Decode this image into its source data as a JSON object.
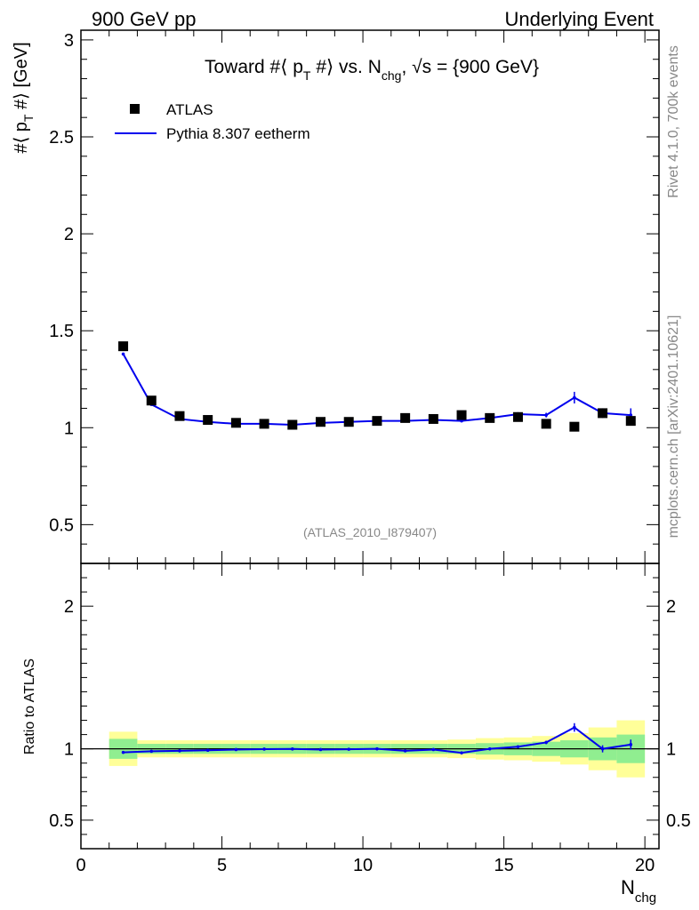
{
  "header": {
    "left": "900 GeV pp",
    "right": "Underlying Event"
  },
  "side_labels": {
    "rivet": "Rivet 4.1.0,  700k events",
    "mcplots": "mcplots.cern.ch [arXiv:2401.10621]"
  },
  "title": {
    "text1": "Toward #⟨ p",
    "sub1": "T",
    "text2": " #⟩ vs. N",
    "sub2": "chg",
    "text3": ", √s = {900 GeV}"
  },
  "analysis_id": "(ATLAS_2010_I879407)",
  "ylabel_main": {
    "text1": "#⟨ p",
    "sub1": "T",
    "text2": " #⟩ [GeV]"
  },
  "ylabel_ratio": "Ratio to ATLAS",
  "xlabel": {
    "text": "N",
    "sub": "chg"
  },
  "legend": {
    "data": "ATLAS",
    "mc": "Pythia 8.307 eetherm"
  },
  "colors": {
    "mc": "#0000ee",
    "data": "#000000",
    "band_inner": "#90ee90",
    "band_outer": "#ffff99"
  },
  "chart_data": {
    "type": "scatter",
    "title": "Toward <pT> vs. Nchg, sqrt(s) = 900 GeV",
    "xlabel": "Nchg",
    "ylabel": "<pT> [GeV]",
    "xlim": [
      0,
      20.5
    ],
    "ylim": [
      0.3,
      3.05
    ],
    "xticks": [
      0,
      5,
      10,
      15,
      20
    ],
    "yticks": [
      0.5,
      1,
      1.5,
      2,
      2.5,
      3
    ],
    "ratio_ylim": [
      0.3,
      2.3
    ],
    "ratio_yticks": [
      0.5,
      1,
      2
    ],
    "x": [
      1.5,
      2.5,
      3.5,
      4.5,
      5.5,
      6.5,
      7.5,
      8.5,
      9.5,
      10.5,
      11.5,
      12.5,
      13.5,
      14.5,
      15.5,
      16.5,
      17.5,
      18.5,
      19.5
    ],
    "bins": [
      [
        1,
        2
      ],
      [
        2,
        3
      ],
      [
        3,
        4
      ],
      [
        4,
        5
      ],
      [
        5,
        6
      ],
      [
        6,
        7
      ],
      [
        7,
        8
      ],
      [
        8,
        9
      ],
      [
        9,
        10
      ],
      [
        10,
        11
      ],
      [
        11,
        12
      ],
      [
        12,
        13
      ],
      [
        13,
        14
      ],
      [
        14,
        15
      ],
      [
        15,
        16
      ],
      [
        16,
        17
      ],
      [
        17,
        18
      ],
      [
        18,
        19
      ],
      [
        19,
        20
      ]
    ],
    "series": [
      {
        "name": "ATLAS",
        "values": [
          1.42,
          1.14,
          1.06,
          1.04,
          1.025,
          1.02,
          1.015,
          1.03,
          1.03,
          1.035,
          1.05,
          1.045,
          1.065,
          1.05,
          1.055,
          1.02,
          1.005,
          1.075,
          1.035
        ],
        "errors": [
          0.01,
          0.01,
          0.01,
          0.01,
          0.01,
          0.01,
          0.01,
          0.01,
          0.01,
          0.01,
          0.01,
          0.01,
          0.01,
          0.01,
          0.01,
          0.01,
          0.01,
          0.02,
          0.02
        ]
      },
      {
        "name": "Pythia 8.307 eetherm",
        "values": [
          1.38,
          1.12,
          1.045,
          1.03,
          1.02,
          1.02,
          1.015,
          1.025,
          1.03,
          1.035,
          1.035,
          1.04,
          1.035,
          1.05,
          1.07,
          1.065,
          1.155,
          1.075,
          1.065
        ],
        "errors": [
          0.005,
          0.005,
          0.005,
          0.005,
          0.005,
          0.005,
          0.005,
          0.005,
          0.005,
          0.005,
          0.005,
          0.005,
          0.005,
          0.005,
          0.01,
          0.012,
          0.03,
          0.025,
          0.035
        ]
      }
    ],
    "ratio": {
      "values": [
        0.975,
        0.983,
        0.986,
        0.99,
        0.995,
        0.998,
        0.999,
        0.995,
        0.997,
        1.0,
        0.986,
        0.995,
        0.972,
        1.0,
        1.015,
        1.045,
        1.15,
        1.0,
        1.03
      ],
      "errors": [
        0.004,
        0.004,
        0.004,
        0.004,
        0.004,
        0.004,
        0.004,
        0.004,
        0.004,
        0.004,
        0.004,
        0.004,
        0.004,
        0.004,
        0.008,
        0.012,
        0.03,
        0.025,
        0.035
      ],
      "band_inner": [
        0.07,
        0.035,
        0.035,
        0.035,
        0.035,
        0.035,
        0.035,
        0.035,
        0.035,
        0.035,
        0.035,
        0.035,
        0.035,
        0.04,
        0.045,
        0.05,
        0.06,
        0.08,
        0.1
      ],
      "band_outer": [
        0.12,
        0.06,
        0.06,
        0.06,
        0.06,
        0.06,
        0.06,
        0.06,
        0.06,
        0.06,
        0.06,
        0.06,
        0.065,
        0.075,
        0.08,
        0.09,
        0.11,
        0.15,
        0.2
      ]
    }
  }
}
